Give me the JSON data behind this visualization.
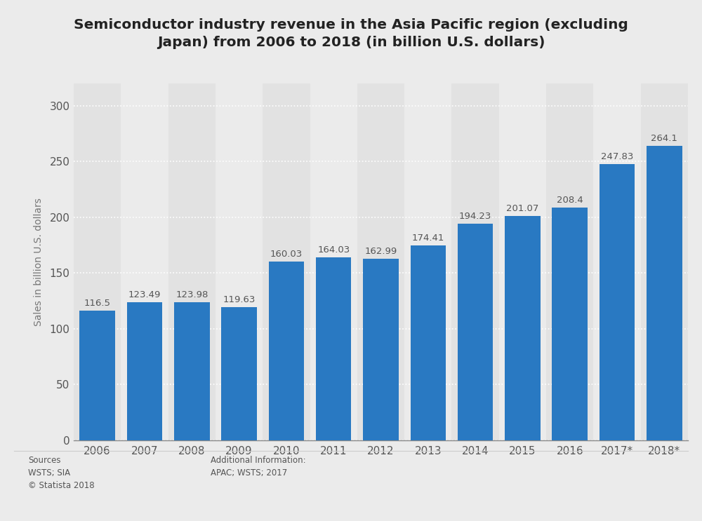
{
  "title": "Semiconductor industry revenue in the Asia Pacific region (excluding\nJapan) from 2006 to 2018 (in billion U.S. dollars)",
  "years": [
    "2006",
    "2007",
    "2008",
    "2009",
    "2010",
    "2011",
    "2012",
    "2013",
    "2014",
    "2015",
    "2016",
    "2017*",
    "2018*"
  ],
  "values": [
    116.5,
    123.49,
    123.98,
    119.63,
    160.03,
    164.03,
    162.99,
    174.41,
    194.23,
    201.07,
    208.4,
    247.83,
    264.1
  ],
  "bar_color": "#2979C2",
  "ylabel": "Sales in billion U.S. dollars",
  "ylim": [
    0,
    320
  ],
  "yticks": [
    0,
    50,
    100,
    150,
    200,
    250,
    300
  ],
  "background_color": "#ebebeb",
  "plot_background_color": "#ebebeb",
  "grid_color": "#ffffff",
  "title_fontsize": 14.5,
  "axis_fontsize": 11,
  "label_fontsize": 9.5,
  "label_color": "#555555",
  "sources_text": "Sources\nWSTS; SIA\n© Statista 2018",
  "additional_info_text": "Additional Information:\nAPAC; WSTS; 2017",
  "band_colors": [
    "#e2e2e2",
    "#ebebeb"
  ]
}
